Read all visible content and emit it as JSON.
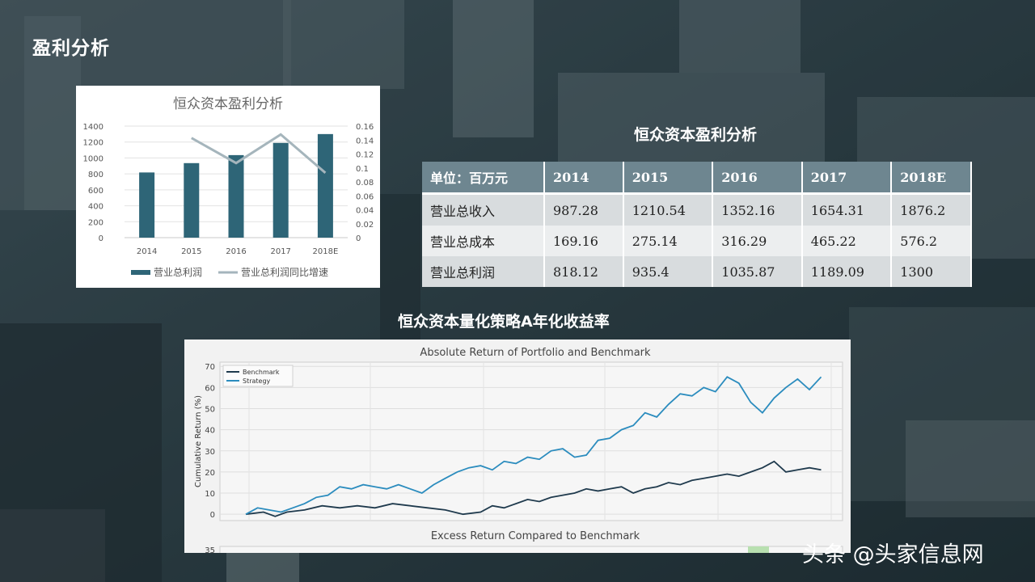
{
  "page": {
    "title": "盈利分析",
    "watermark": "头条 @头家信息网"
  },
  "profit_chart": {
    "chart_data": {
      "type": "bar",
      "title": "恒众资本盈利分析",
      "categories": [
        "2014",
        "2015",
        "2016",
        "2017",
        "2018E"
      ],
      "series": [
        {
          "name": "营业总利润",
          "type": "bar",
          "axis": "left",
          "values": [
            818.12,
            935.4,
            1035.87,
            1189.09,
            1300
          ]
        },
        {
          "name": "营业总利润同比增速",
          "type": "line",
          "axis": "right",
          "values": [
            null,
            0.143,
            0.107,
            0.148,
            0.093
          ]
        }
      ],
      "ylim": [
        0,
        1400
      ],
      "y_ticks": [
        "0",
        "200",
        "400",
        "600",
        "800",
        "1000",
        "1200",
        "1400"
      ],
      "y2lim": [
        0,
        0.16
      ],
      "y2_ticks": [
        "0",
        "0.02",
        "0.04",
        "0.06",
        "0.08",
        "0.1",
        "0.12",
        "0.14",
        "0.16"
      ],
      "legend_position": "bottom",
      "colors": {
        "bar": "#2e6577",
        "line": "#a5b5bc"
      }
    }
  },
  "table": {
    "title": "恒众资本盈利分析",
    "unit_label": "单位：百万元",
    "columns": [
      "2014",
      "2015",
      "2016",
      "2017",
      "2018E"
    ],
    "rows": [
      {
        "label": "营业总收入",
        "values": [
          "987.28",
          "1210.54",
          "1352.16",
          "1654.31",
          "1876.2"
        ]
      },
      {
        "label": "营业总成本",
        "values": [
          "169.16",
          "275.14",
          "316.29",
          "465.22",
          "576.2"
        ]
      },
      {
        "label": "营业总利润",
        "values": [
          "818.12",
          "935.4",
          "1035.87",
          "1189.09",
          "1300"
        ]
      }
    ]
  },
  "returns": {
    "title": "恒众资本量化策略A年化收益率",
    "chart_data": {
      "type": "line",
      "title": "Absolute Return of Portfolio and Benchmark",
      "ylabel": "Cumulative Return (%)",
      "xlabel": "",
      "ylim": [
        -3,
        72
      ],
      "y_ticks": [
        "0",
        "10",
        "20",
        "30",
        "40",
        "50",
        "60",
        "70"
      ],
      "x_domain": [
        0,
        100
      ],
      "grid": true,
      "legend_position": "top-left",
      "series": [
        {
          "name": "Benchmark",
          "color": "#1f3a4d",
          "x": [
            0,
            3,
            5,
            7,
            10,
            13,
            16,
            19,
            22,
            25,
            28,
            31,
            34,
            37,
            40,
            42,
            44,
            46,
            48,
            50,
            52,
            54,
            56,
            58,
            60,
            62,
            64,
            66,
            68,
            70,
            72,
            74,
            76,
            78,
            80,
            82,
            84,
            86,
            88,
            90,
            92,
            94,
            96,
            98
          ],
          "y": [
            0,
            1,
            -1,
            1,
            2,
            4,
            3,
            4,
            3,
            5,
            4,
            3,
            2,
            0,
            1,
            4,
            3,
            5,
            7,
            6,
            8,
            9,
            10,
            12,
            11,
            12,
            13,
            10,
            12,
            13,
            15,
            14,
            16,
            17,
            18,
            19,
            18,
            20,
            22,
            25,
            20,
            21,
            22,
            21
          ]
        },
        {
          "name": "Strategy",
          "color": "#2b8cbe",
          "x": [
            0,
            2,
            4,
            6,
            8,
            10,
            12,
            14,
            16,
            18,
            20,
            22,
            24,
            26,
            28,
            30,
            32,
            34,
            36,
            38,
            40,
            42,
            44,
            46,
            48,
            50,
            52,
            54,
            56,
            58,
            60,
            62,
            64,
            66,
            68,
            70,
            72,
            74,
            76,
            78,
            80,
            82,
            84,
            86,
            88,
            90,
            92,
            94,
            96,
            98
          ],
          "y": [
            0,
            3,
            2,
            1,
            3,
            5,
            8,
            9,
            13,
            12,
            14,
            13,
            12,
            14,
            12,
            10,
            14,
            17,
            20,
            22,
            23,
            21,
            25,
            24,
            27,
            26,
            30,
            31,
            27,
            28,
            35,
            36,
            40,
            42,
            48,
            46,
            52,
            57,
            56,
            60,
            58,
            65,
            62,
            53,
            48,
            55,
            60,
            64,
            59,
            65
          ]
        }
      ]
    },
    "excess_chart": {
      "title": "Excess Return Compared to Benchmark",
      "y_tick_top": "35"
    }
  }
}
